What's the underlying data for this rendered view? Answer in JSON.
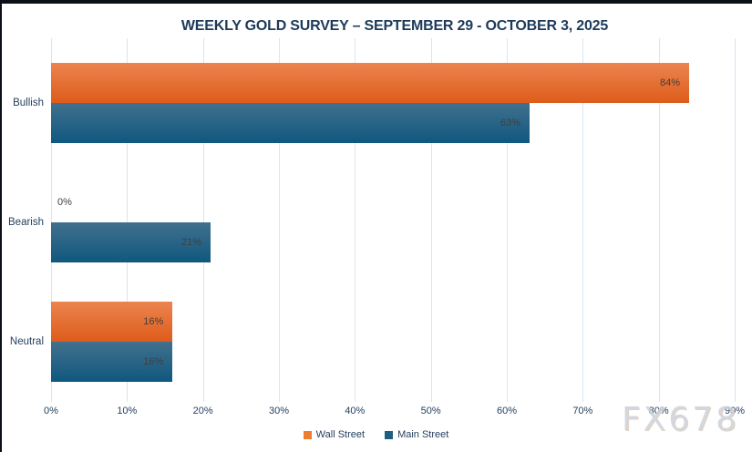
{
  "title": "WEEKLY GOLD SURVEY – SEPTEMBER 29 - OCTOBER 3, 2025",
  "watermark": "FX678",
  "colors": {
    "wall_street_top": "#ec8450",
    "wall_street_bottom": "#dd5c1a",
    "main_street_top": "#41708d",
    "main_street_bottom": "#0f587f",
    "legend_wall_street": "#ed7d31",
    "legend_main_street": "#1f5e80",
    "gridline": "#d8e6f1",
    "title_text": "#1d3a5a",
    "axis_text": "#243f5f",
    "data_label_text": "#3f3f3f"
  },
  "chart_data": {
    "type": "bar",
    "orientation": "horizontal",
    "title": "WEEKLY GOLD SURVEY – SEPTEMBER 29 - OCTOBER 3, 2025",
    "categories": [
      "Bullish",
      "Bearish",
      "Neutral"
    ],
    "series": [
      {
        "name": "Wall Street",
        "values": [
          84,
          0,
          16
        ],
        "labels": [
          "84%",
          "0%",
          "16%"
        ]
      },
      {
        "name": "Main Street",
        "values": [
          63,
          21,
          16
        ],
        "labels": [
          "63%",
          "21%",
          "16%"
        ]
      }
    ],
    "x_ticks": [
      "0%",
      "10%",
      "20%",
      "30%",
      "40%",
      "50%",
      "60%",
      "70%",
      "80%",
      "90%"
    ],
    "x_tick_values": [
      0,
      10,
      20,
      30,
      40,
      50,
      60,
      70,
      80,
      90
    ],
    "xlim": [
      0,
      90
    ],
    "grid": "vertical",
    "legend_position": "bottom"
  },
  "legend": {
    "items": [
      {
        "label": "Wall Street"
      },
      {
        "label": "Main Street"
      }
    ]
  }
}
